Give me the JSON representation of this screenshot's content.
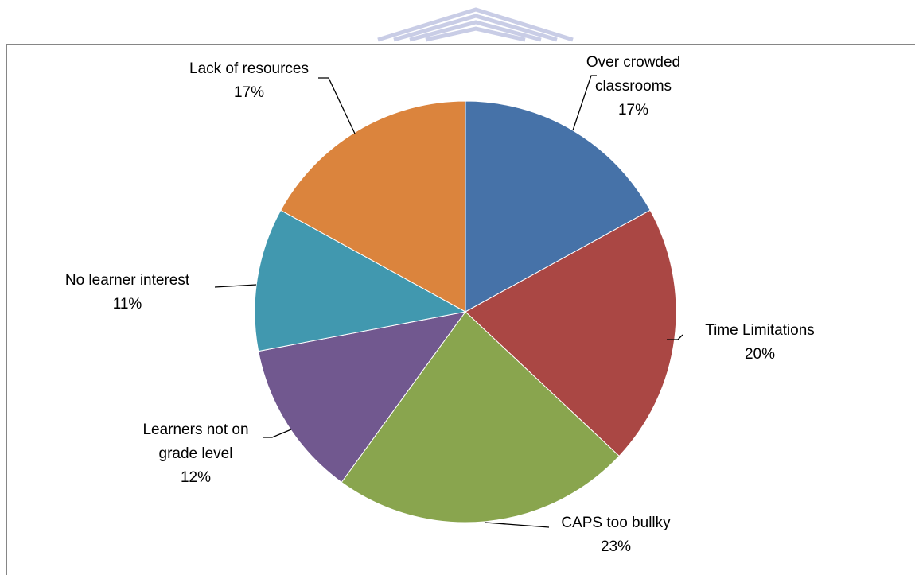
{
  "chart_data": {
    "type": "pie",
    "title": "",
    "slices": [
      {
        "label_lines": [
          "Over crowded",
          "classrooms"
        ],
        "label": "Over crowded classrooms",
        "value": 17,
        "value_label": "17%",
        "color": "#4672A8"
      },
      {
        "label_lines": [
          "Time Limitations"
        ],
        "label": "Time Limitations",
        "value": 20,
        "value_label": "20%",
        "color": "#AA4744"
      },
      {
        "label_lines": [
          "CAPS too bullky"
        ],
        "label": "CAPS too bullky",
        "value": 23,
        "value_label": "23%",
        "color": "#89A54E"
      },
      {
        "label_lines": [
          "Learners not on",
          "grade level"
        ],
        "label": "Learners not on grade level",
        "value": 12,
        "value_label": "12%",
        "color": "#71588F"
      },
      {
        "label_lines": [
          "No learner interest"
        ],
        "label": "No learner interest",
        "value": 11,
        "value_label": "11%",
        "color": "#4198AF"
      },
      {
        "label_lines": [
          "Lack of resources"
        ],
        "label": "Lack of resources",
        "value": 17,
        "value_label": "17%",
        "color": "#DB843D"
      }
    ],
    "start_angle": "12 o'clock",
    "direction": "clockwise",
    "legend": "none",
    "data_labels": "outside with leader lines"
  }
}
